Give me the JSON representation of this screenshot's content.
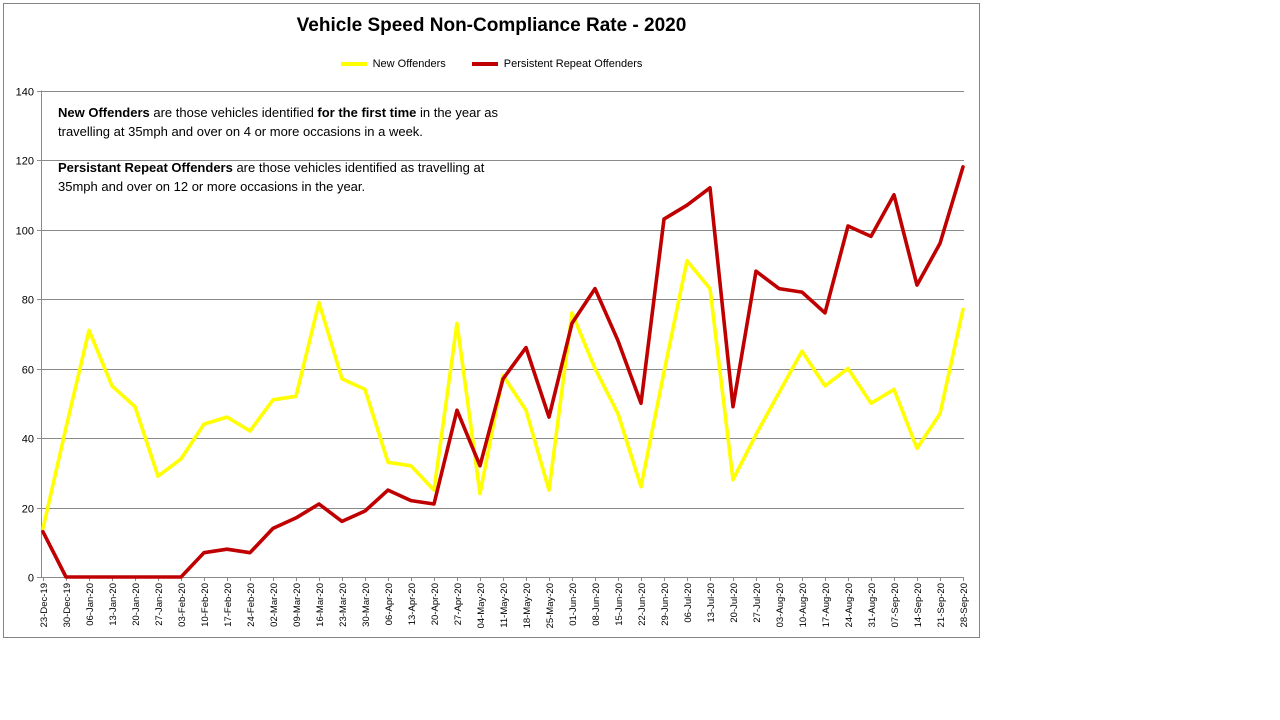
{
  "chart_data": {
    "type": "line",
    "title": "Vehicle Speed Non-Compliance Rate - 2020",
    "categories": [
      "23-Dec-19",
      "30-Dec-19",
      "06-Jan-20",
      "13-Jan-20",
      "20-Jan-20",
      "27-Jan-20",
      "03-Feb-20",
      "10-Feb-20",
      "17-Feb-20",
      "24-Feb-20",
      "02-Mar-20",
      "09-Mar-20",
      "16-Mar-20",
      "23-Mar-20",
      "30-Mar-20",
      "06-Apr-20",
      "13-Apr-20",
      "20-Apr-20",
      "27-Apr-20",
      "04-May-20",
      "11-May-20",
      "18-May-20",
      "25-May-20",
      "01-Jun-20",
      "08-Jun-20",
      "15-Jun-20",
      "22-Jun-20",
      "29-Jun-20",
      "06-Jul-20",
      "13-Jul-20",
      "20-Jul-20",
      "27-Jul-20",
      "03-Aug-20",
      "10-Aug-20",
      "17-Aug-20",
      "24-Aug-20",
      "31-Aug-20",
      "07-Sep-20",
      "14-Sep-20",
      "21-Sep-20",
      "28-Sep-20"
    ],
    "series": [
      {
        "name": "New Offenders",
        "color": "#FFFF00",
        "values": [
          14,
          43,
          71,
          55,
          49,
          29,
          34,
          44,
          46,
          42,
          51,
          52,
          79,
          57,
          54,
          33,
          32,
          25,
          73,
          24,
          58,
          48,
          25,
          76,
          60,
          47,
          26,
          59,
          91,
          83,
          28,
          41,
          53,
          65,
          55,
          60,
          50,
          54,
          37,
          47,
          77
        ]
      },
      {
        "name": "Persistent Repeat Offenders",
        "color": "#C00000",
        "values": [
          13,
          0,
          0,
          0,
          0,
          0,
          0,
          7,
          8,
          7,
          14,
          17,
          21,
          16,
          19,
          25,
          22,
          21,
          48,
          32,
          57,
          66,
          46,
          73,
          83,
          68,
          50,
          103,
          107,
          112,
          49,
          88,
          83,
          82,
          76,
          101,
          98,
          110,
          84,
          96,
          118
        ]
      }
    ],
    "ylim": [
      0,
      140
    ],
    "ytick_step": 20,
    "grid": true,
    "legend_position": "top",
    "x_label_rotation": 90
  },
  "annotations": [
    {
      "lines": [
        [
          {
            "t": "New Offenders",
            "b": true
          },
          {
            "t": " are those vehicles identified ",
            "b": false
          },
          {
            "t": "for the first time",
            "b": true
          },
          {
            "t": " in the year as",
            "b": false
          }
        ],
        [
          {
            "t": "travelling at 35mph and over on 4 or more occasions in a week.",
            "b": false
          }
        ]
      ]
    },
    {
      "lines": [
        [
          {
            "t": "Persistant Repeat Offenders",
            "b": true
          },
          {
            "t": " are those vehicles identified as travelling at",
            "b": false
          }
        ],
        [
          {
            "t": "35mph and over on 12 or more occasions in the year.",
            "b": false
          }
        ]
      ]
    }
  ],
  "colors": {
    "grid": "#8A8A8A",
    "axis": "#8A8A8A",
    "frame_border": "#848484",
    "text": "#000000",
    "background": "#FFFFFF"
  }
}
